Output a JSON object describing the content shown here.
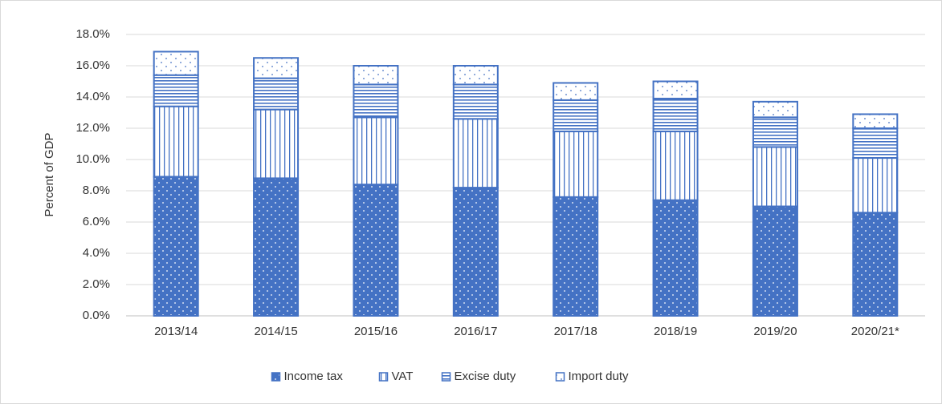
{
  "chart_data": {
    "type": "stacked_bar",
    "y_label": "Percent of GDP",
    "categories": [
      "2013/14",
      "2014/15",
      "2015/16",
      "2016/17",
      "2017/18",
      "2018/19",
      "2019/20",
      "2020/21*"
    ],
    "series": [
      {
        "name": "Income tax",
        "color": "#4472c4",
        "pattern": "dots",
        "values": [
          8.9,
          8.8,
          8.4,
          8.2,
          7.6,
          7.4,
          7.0,
          6.6
        ]
      },
      {
        "name": "VAT",
        "color": "#4472c4",
        "pattern": "vertical",
        "values": [
          4.5,
          4.4,
          4.3,
          4.4,
          4.2,
          4.4,
          3.8,
          3.5
        ]
      },
      {
        "name": "Excise duty",
        "color": "#4472c4",
        "pattern": "horizontal",
        "values": [
          2.0,
          2.0,
          2.1,
          2.2,
          2.0,
          2.1,
          1.9,
          1.9
        ]
      },
      {
        "name": "Import duty",
        "color": "#4472c4",
        "pattern": "sparse-dots",
        "values": [
          1.5,
          1.3,
          1.2,
          1.2,
          1.1,
          1.1,
          1.0,
          0.9
        ]
      }
    ],
    "ylim": [
      0,
      18
    ],
    "yticks": [
      {
        "value": 0,
        "label": "0.0%"
      },
      {
        "value": 2,
        "label": "2.0%"
      },
      {
        "value": 4,
        "label": "4.0%"
      },
      {
        "value": 6,
        "label": "6.0%"
      },
      {
        "value": 8,
        "label": "8.0%"
      },
      {
        "value": 10,
        "label": "10.0%"
      },
      {
        "value": 12,
        "label": "12.0%"
      },
      {
        "value": 14,
        "label": "14.0%"
      },
      {
        "value": 16,
        "label": "16.0%"
      },
      {
        "value": 18,
        "label": "18.0%"
      }
    ],
    "grid": true,
    "legend": "bottom"
  }
}
